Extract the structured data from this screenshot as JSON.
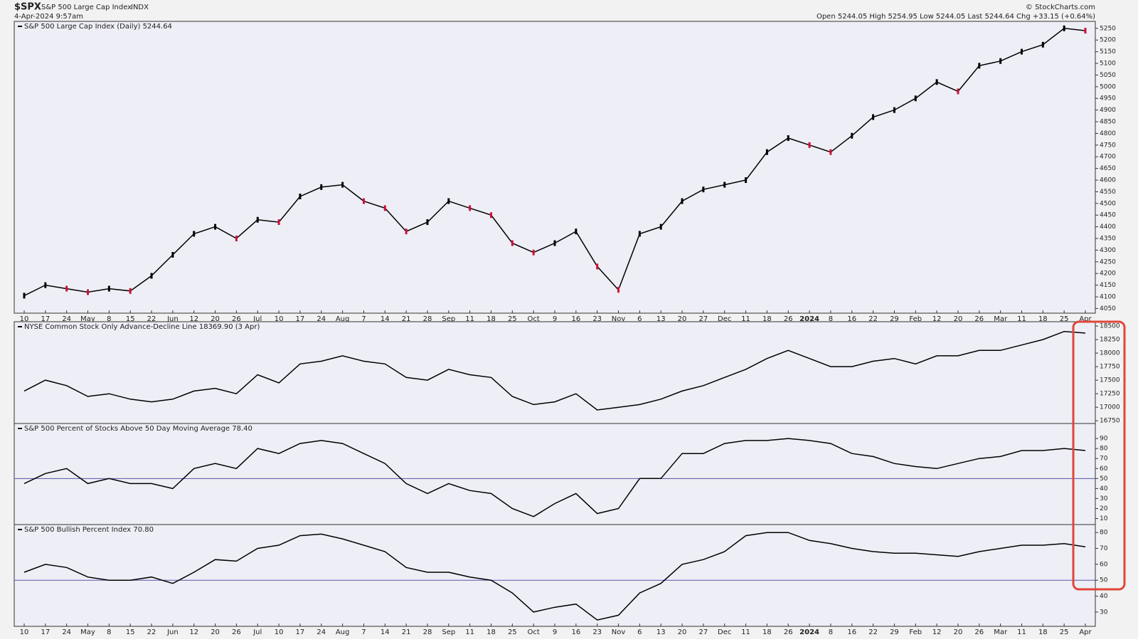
{
  "header": {
    "symbol": "$SPX",
    "name": "S&P 500 Large Cap Index",
    "exchange": "INDX",
    "timestamp": "4-Apr-2024 9:57am",
    "quote": "Open 5244.05  High 5254.95  Low 5244.05  Last 5244.64  Chg +33.15 (+0.64%)",
    "source": "© StockCharts.com"
  },
  "chart_data": [
    {
      "type": "line",
      "title": "S&P 500 Large Cap Index (Daily) 5244.64",
      "color": "#000000",
      "down_color": "#d0103a",
      "categories": [
        "10",
        "17",
        "24",
        "May",
        "8",
        "15",
        "22",
        "Jun",
        "12",
        "20",
        "26",
        "Jul",
        "10",
        "17",
        "24",
        "Aug",
        "7",
        "14",
        "21",
        "28",
        "Sep",
        "11",
        "18",
        "25",
        "Oct",
        "9",
        "16",
        "23",
        "Nov",
        "6",
        "13",
        "20",
        "27",
        "Dec",
        "11",
        "18",
        "26",
        "2024",
        "8",
        "16",
        "22",
        "29",
        "Feb",
        "12",
        "20",
        "26",
        "Mar",
        "11",
        "18",
        "25",
        "Apr"
      ],
      "values": [
        4105,
        4150,
        4135,
        4120,
        4135,
        4125,
        4190,
        4280,
        4370,
        4400,
        4350,
        4430,
        4420,
        4530,
        4570,
        4580,
        4510,
        4480,
        4380,
        4420,
        4510,
        4480,
        4450,
        4330,
        4290,
        4330,
        4380,
        4230,
        4130,
        4370,
        4400,
        4510,
        4560,
        4580,
        4600,
        4720,
        4780,
        4750,
        4720,
        4790,
        4870,
        4900,
        4950,
        5020,
        4980,
        5090,
        5110,
        5150,
        5180,
        5250,
        5240
      ],
      "ylim": [
        4030,
        5280
      ],
      "yticks": [
        4050,
        4100,
        4150,
        4200,
        4250,
        4300,
        4350,
        4400,
        4450,
        4500,
        4550,
        4600,
        4650,
        4700,
        4750,
        4800,
        4850,
        4900,
        4950,
        5000,
        5050,
        5100,
        5150,
        5200,
        5250
      ]
    },
    {
      "type": "line",
      "title": "NYSE Common Stock Only Advance-Decline Line 18369.90 (3 Apr)",
      "color": "#000000",
      "values": [
        17300,
        17500,
        17400,
        17200,
        17250,
        17150,
        17100,
        17150,
        17300,
        17350,
        17250,
        17600,
        17450,
        17800,
        17850,
        17950,
        17850,
        17800,
        17550,
        17500,
        17700,
        17600,
        17550,
        17200,
        17050,
        17100,
        17250,
        16950,
        17000,
        17050,
        17150,
        17300,
        17400,
        17550,
        17700,
        17900,
        18050,
        17900,
        17750,
        17750,
        17850,
        17900,
        17800,
        17950,
        17950,
        18050,
        18050,
        18150,
        18250,
        18400,
        18370
      ],
      "ylim": [
        16700,
        18580
      ],
      "yticks": [
        16750,
        17000,
        17250,
        17500,
        17750,
        18000,
        18250,
        18500
      ]
    },
    {
      "type": "line",
      "title": "S&P 500 Percent of Stocks Above 50 Day Moving Average 78.40",
      "color": "#000000",
      "hline": 50,
      "hline_color": "#5555aa",
      "values": [
        45,
        55,
        60,
        45,
        50,
        45,
        45,
        40,
        60,
        65,
        60,
        80,
        75,
        85,
        88,
        85,
        75,
        65,
        45,
        35,
        45,
        38,
        35,
        20,
        12,
        25,
        35,
        15,
        20,
        50,
        50,
        75,
        75,
        85,
        88,
        88,
        90,
        88,
        85,
        75,
        72,
        65,
        62,
        60,
        65,
        70,
        72,
        78,
        78,
        80,
        78
      ],
      "ylim": [
        4,
        105
      ],
      "yticks": [
        10,
        20,
        30,
        40,
        50,
        60,
        70,
        80,
        90
      ]
    },
    {
      "type": "line",
      "title": "S&P 500 Bullish Percent Index 70.80",
      "color": "#000000",
      "hline": 50,
      "hline_color": "#5555aa",
      "categories": [
        "10",
        "17",
        "24",
        "May",
        "8",
        "15",
        "22",
        "Jun",
        "12",
        "20",
        "26",
        "Jul",
        "10",
        "17",
        "24",
        "Aug",
        "7",
        "14",
        "21",
        "28",
        "Sep",
        "11",
        "18",
        "25",
        "Oct",
        "9",
        "16",
        "23",
        "Nov",
        "6",
        "13",
        "20",
        "27",
        "Dec",
        "11",
        "18",
        "26",
        "2024",
        "8",
        "16",
        "22",
        "29",
        "Feb",
        "12",
        "20",
        "26",
        "Mar",
        "11",
        "18",
        "25",
        "Apr"
      ],
      "values": [
        55,
        60,
        58,
        52,
        50,
        50,
        52,
        48,
        55,
        63,
        62,
        70,
        72,
        78,
        79,
        76,
        72,
        68,
        58,
        55,
        55,
        52,
        50,
        42,
        30,
        33,
        35,
        25,
        28,
        42,
        48,
        60,
        63,
        68,
        78,
        80,
        80,
        75,
        73,
        70,
        68,
        67,
        67,
        66,
        65,
        68,
        70,
        72,
        72,
        73,
        71
      ],
      "ylim": [
        21,
        85
      ],
      "yticks": [
        30,
        40,
        50,
        60,
        70,
        80
      ]
    }
  ]
}
